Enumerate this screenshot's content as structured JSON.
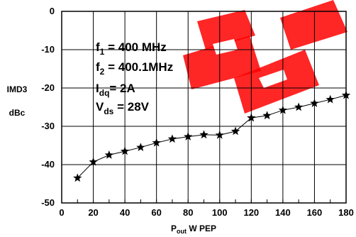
{
  "chart_data": {
    "type": "line",
    "title": "",
    "ylabel_line1": "IMD3",
    "ylabel_line2": "dBc",
    "xlabel": {
      "main": "P",
      "sub": "out",
      "rest": " W  PEP"
    },
    "xlim": [
      0,
      180
    ],
    "ylim": [
      -50,
      0
    ],
    "xticks": [
      0,
      10,
      20,
      30,
      40,
      50,
      60,
      70,
      80,
      90,
      100,
      110,
      120,
      130,
      140,
      150,
      160,
      170,
      180
    ],
    "xtick_labels": [
      "0",
      "20",
      "40",
      "60",
      "80",
      "100",
      "120",
      "140",
      "160",
      "180"
    ],
    "ytick_labels": [
      "0",
      "-10",
      "-20",
      "-30",
      "-40",
      "-50"
    ],
    "yticks": [
      0,
      -10,
      -20,
      -30,
      -40,
      -50
    ],
    "grid": true,
    "annotations": [
      {
        "main": "f",
        "sub": "1",
        "rest": "  = 400   MHz"
      },
      {
        "main": "f",
        "sub": "2",
        "rest": "  = 400.1MHz"
      },
      {
        "main": "I",
        "sub": "dq",
        "rest": "= 2A"
      },
      {
        "main": "V",
        "sub": "ds",
        "rest": " = 28V"
      }
    ],
    "series": [
      {
        "marker": "star",
        "color": "#000000",
        "x": [
          10,
          20,
          30,
          40,
          50,
          60,
          70,
          80,
          90,
          100,
          110,
          120,
          130,
          140,
          150,
          160,
          170,
          180
        ],
        "y": [
          -43.5,
          -39.3,
          -37.5,
          -36.5,
          -35.5,
          -34.3,
          -33.3,
          -32.7,
          -32.2,
          -32.3,
          -31.3,
          -27.8,
          -27.2,
          -25.8,
          -25.0,
          -24.0,
          -23.0,
          -21.9
        ]
      }
    ]
  },
  "watermark": {
    "color": "#ff0000"
  }
}
